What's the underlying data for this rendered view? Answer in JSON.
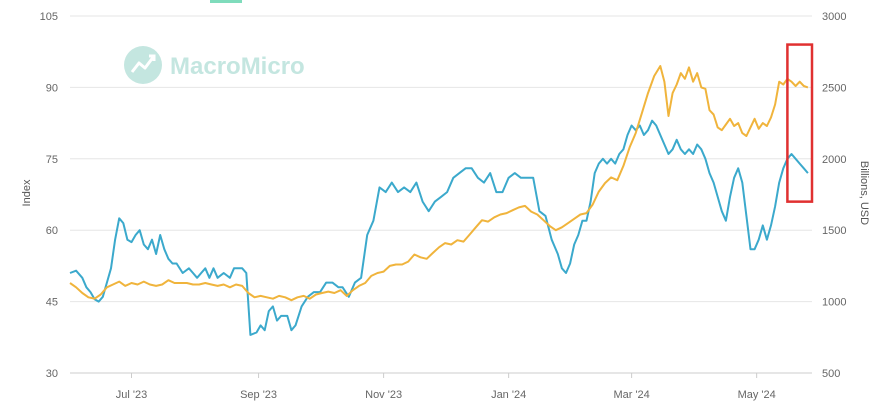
{
  "brand": {
    "name": "MacroMicro",
    "color": "#c4e6e0"
  },
  "chart_data": {
    "type": "line",
    "title": "",
    "left_axis": {
      "label": "Index",
      "ylim": [
        30,
        105
      ],
      "ticks": [
        30,
        45,
        60,
        75,
        90,
        105
      ]
    },
    "right_axis": {
      "label": "Billions, USD",
      "ylim": [
        500,
        3000
      ],
      "ticks": [
        500,
        1000,
        1500,
        2000,
        2500,
        3000
      ]
    },
    "x_ticks": [
      {
        "label": "Jul '23",
        "day": 30
      },
      {
        "label": "Sep '23",
        "day": 92
      },
      {
        "label": "Nov '23",
        "day": 153
      },
      {
        "label": "Jan '24",
        "day": 214
      },
      {
        "label": "Mar '24",
        "day": 274
      },
      {
        "label": "May '24",
        "day": 335
      }
    ],
    "grid": true,
    "series": [
      {
        "axis": "left",
        "color": "#3ba9cc",
        "points": [
          [
            0,
            51
          ],
          [
            3,
            51.5
          ],
          [
            6,
            50
          ],
          [
            8,
            48
          ],
          [
            10,
            47
          ],
          [
            12,
            45.5
          ],
          [
            14,
            45
          ],
          [
            16,
            46
          ],
          [
            18,
            49
          ],
          [
            20,
            52
          ],
          [
            22,
            58
          ],
          [
            24,
            62.5
          ],
          [
            26,
            61.5
          ],
          [
            28,
            58
          ],
          [
            30,
            57.5
          ],
          [
            32,
            59
          ],
          [
            34,
            60
          ],
          [
            36,
            57
          ],
          [
            38,
            56
          ],
          [
            40,
            58
          ],
          [
            42,
            55
          ],
          [
            44,
            59
          ],
          [
            46,
            56
          ],
          [
            48,
            54
          ],
          [
            50,
            53
          ],
          [
            52,
            53
          ],
          [
            55,
            51
          ],
          [
            58,
            52
          ],
          [
            60,
            51
          ],
          [
            62,
            50
          ],
          [
            64,
            51
          ],
          [
            66,
            52
          ],
          [
            68,
            50
          ],
          [
            70,
            52
          ],
          [
            72,
            50
          ],
          [
            75,
            51
          ],
          [
            78,
            50
          ],
          [
            80,
            52
          ],
          [
            84,
            52
          ],
          [
            86,
            51
          ],
          [
            88,
            38
          ],
          [
            91,
            38.5
          ],
          [
            93,
            40
          ],
          [
            95,
            39
          ],
          [
            97,
            43
          ],
          [
            99,
            44
          ],
          [
            101,
            41
          ],
          [
            103,
            42
          ],
          [
            106,
            42
          ],
          [
            108,
            39
          ],
          [
            110,
            40
          ],
          [
            113,
            44
          ],
          [
            116,
            46
          ],
          [
            119,
            47
          ],
          [
            122,
            47
          ],
          [
            125,
            49
          ],
          [
            128,
            49
          ],
          [
            131,
            48
          ],
          [
            133,
            48
          ],
          [
            136,
            46
          ],
          [
            139,
            49
          ],
          [
            142,
            50
          ],
          [
            145,
            59
          ],
          [
            148,
            62
          ],
          [
            151,
            69
          ],
          [
            154,
            68
          ],
          [
            157,
            70
          ],
          [
            160,
            68
          ],
          [
            163,
            69
          ],
          [
            166,
            68
          ],
          [
            169,
            70
          ],
          [
            172,
            66
          ],
          [
            175,
            64
          ],
          [
            178,
            66
          ],
          [
            181,
            67
          ],
          [
            184,
            68
          ],
          [
            187,
            71
          ],
          [
            190,
            72
          ],
          [
            193,
            73
          ],
          [
            196,
            73
          ],
          [
            199,
            71
          ],
          [
            202,
            70
          ],
          [
            205,
            72
          ],
          [
            208,
            68
          ],
          [
            211,
            68
          ],
          [
            214,
            71
          ],
          [
            217,
            72
          ],
          [
            220,
            71
          ],
          [
            223,
            71
          ],
          [
            226,
            71
          ],
          [
            229,
            64
          ],
          [
            232,
            63
          ],
          [
            235,
            58
          ],
          [
            238,
            55
          ],
          [
            240,
            52
          ],
          [
            242,
            51
          ],
          [
            244,
            53
          ],
          [
            246,
            57
          ],
          [
            248,
            59
          ],
          [
            250,
            62
          ],
          [
            252,
            62
          ],
          [
            254,
            66
          ],
          [
            256,
            72
          ],
          [
            258,
            74
          ],
          [
            260,
            75
          ],
          [
            262,
            74
          ],
          [
            264,
            75
          ],
          [
            266,
            74
          ],
          [
            268,
            76
          ],
          [
            270,
            77
          ],
          [
            272,
            80
          ],
          [
            274,
            82
          ],
          [
            276,
            81
          ],
          [
            278,
            82
          ],
          [
            280,
            80
          ],
          [
            282,
            81
          ],
          [
            284,
            83
          ],
          [
            286,
            82
          ],
          [
            288,
            80
          ],
          [
            290,
            78
          ],
          [
            292,
            76
          ],
          [
            294,
            77
          ],
          [
            296,
            79
          ],
          [
            298,
            77
          ],
          [
            300,
            76
          ],
          [
            302,
            77
          ],
          [
            304,
            76
          ],
          [
            306,
            78
          ],
          [
            308,
            77
          ],
          [
            310,
            75
          ],
          [
            312,
            72
          ],
          [
            314,
            70
          ],
          [
            316,
            67
          ],
          [
            318,
            64
          ],
          [
            320,
            62
          ],
          [
            322,
            67
          ],
          [
            324,
            71
          ],
          [
            326,
            73
          ],
          [
            328,
            70
          ],
          [
            330,
            63
          ],
          [
            332,
            56
          ],
          [
            334,
            56
          ],
          [
            336,
            58
          ],
          [
            338,
            61
          ],
          [
            340,
            58
          ],
          [
            342,
            61
          ],
          [
            344,
            65
          ],
          [
            346,
            70
          ],
          [
            348,
            73
          ],
          [
            350,
            75
          ],
          [
            352,
            76
          ],
          [
            354,
            75
          ],
          [
            356,
            74
          ],
          [
            358,
            73
          ],
          [
            360,
            72
          ]
        ]
      },
      {
        "axis": "right",
        "color": "#f0b43c",
        "points": [
          [
            0,
            1130
          ],
          [
            3,
            1100
          ],
          [
            6,
            1060
          ],
          [
            9,
            1030
          ],
          [
            12,
            1020
          ],
          [
            15,
            1050
          ],
          [
            18,
            1100
          ],
          [
            21,
            1120
          ],
          [
            24,
            1140
          ],
          [
            27,
            1110
          ],
          [
            30,
            1130
          ],
          [
            33,
            1120
          ],
          [
            36,
            1140
          ],
          [
            39,
            1120
          ],
          [
            42,
            1110
          ],
          [
            45,
            1120
          ],
          [
            48,
            1150
          ],
          [
            51,
            1130
          ],
          [
            54,
            1130
          ],
          [
            57,
            1130
          ],
          [
            60,
            1120
          ],
          [
            63,
            1120
          ],
          [
            66,
            1130
          ],
          [
            69,
            1120
          ],
          [
            72,
            1110
          ],
          [
            75,
            1120
          ],
          [
            78,
            1100
          ],
          [
            81,
            1120
          ],
          [
            84,
            1110
          ],
          [
            87,
            1060
          ],
          [
            90,
            1030
          ],
          [
            93,
            1040
          ],
          [
            96,
            1030
          ],
          [
            99,
            1020
          ],
          [
            102,
            1040
          ],
          [
            105,
            1030
          ],
          [
            108,
            1010
          ],
          [
            111,
            1030
          ],
          [
            114,
            1040
          ],
          [
            117,
            1020
          ],
          [
            120,
            1050
          ],
          [
            123,
            1060
          ],
          [
            126,
            1070
          ],
          [
            129,
            1060
          ],
          [
            132,
            1080
          ],
          [
            135,
            1040
          ],
          [
            138,
            1080
          ],
          [
            141,
            1110
          ],
          [
            144,
            1130
          ],
          [
            147,
            1180
          ],
          [
            150,
            1200
          ],
          [
            153,
            1210
          ],
          [
            156,
            1250
          ],
          [
            159,
            1260
          ],
          [
            162,
            1260
          ],
          [
            165,
            1280
          ],
          [
            168,
            1330
          ],
          [
            171,
            1310
          ],
          [
            174,
            1300
          ],
          [
            177,
            1340
          ],
          [
            180,
            1380
          ],
          [
            183,
            1410
          ],
          [
            186,
            1400
          ],
          [
            189,
            1430
          ],
          [
            192,
            1420
          ],
          [
            195,
            1470
          ],
          [
            198,
            1520
          ],
          [
            201,
            1570
          ],
          [
            204,
            1560
          ],
          [
            207,
            1590
          ],
          [
            210,
            1610
          ],
          [
            213,
            1620
          ],
          [
            216,
            1640
          ],
          [
            219,
            1660
          ],
          [
            222,
            1670
          ],
          [
            225,
            1630
          ],
          [
            228,
            1610
          ],
          [
            231,
            1570
          ],
          [
            234,
            1530
          ],
          [
            237,
            1500
          ],
          [
            240,
            1520
          ],
          [
            243,
            1550
          ],
          [
            246,
            1580
          ],
          [
            249,
            1610
          ],
          [
            252,
            1620
          ],
          [
            255,
            1680
          ],
          [
            258,
            1770
          ],
          [
            261,
            1830
          ],
          [
            264,
            1870
          ],
          [
            267,
            1850
          ],
          [
            270,
            1950
          ],
          [
            273,
            2080
          ],
          [
            276,
            2180
          ],
          [
            279,
            2320
          ],
          [
            282,
            2460
          ],
          [
            285,
            2580
          ],
          [
            288,
            2650
          ],
          [
            290,
            2540
          ],
          [
            292,
            2300
          ],
          [
            294,
            2460
          ],
          [
            296,
            2520
          ],
          [
            298,
            2600
          ],
          [
            300,
            2560
          ],
          [
            302,
            2640
          ],
          [
            304,
            2540
          ],
          [
            306,
            2600
          ],
          [
            308,
            2500
          ],
          [
            310,
            2490
          ],
          [
            312,
            2340
          ],
          [
            314,
            2310
          ],
          [
            316,
            2220
          ],
          [
            318,
            2200
          ],
          [
            320,
            2240
          ],
          [
            322,
            2280
          ],
          [
            324,
            2230
          ],
          [
            326,
            2250
          ],
          [
            328,
            2180
          ],
          [
            330,
            2160
          ],
          [
            332,
            2220
          ],
          [
            334,
            2280
          ],
          [
            336,
            2210
          ],
          [
            338,
            2250
          ],
          [
            340,
            2230
          ],
          [
            342,
            2290
          ],
          [
            344,
            2380
          ],
          [
            346,
            2540
          ],
          [
            348,
            2520
          ],
          [
            350,
            2560
          ],
          [
            352,
            2540
          ],
          [
            354,
            2510
          ],
          [
            356,
            2540
          ],
          [
            358,
            2510
          ],
          [
            360,
            2500
          ]
        ]
      }
    ],
    "highlight": {
      "color": "#e03030",
      "from_day": 350,
      "to_day": 362,
      "right_from": 1700,
      "right_to": 2800
    }
  }
}
